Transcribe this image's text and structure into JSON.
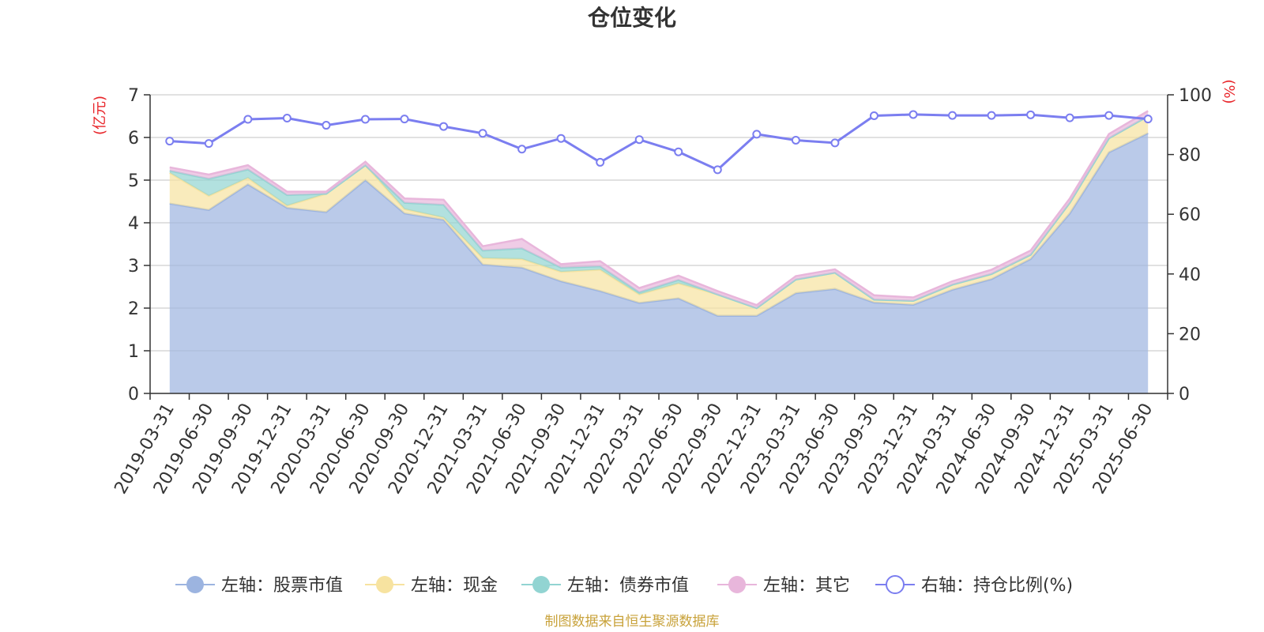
{
  "chart_data": {
    "type": "area",
    "title": "仓位变化",
    "left_unit": "(亿元)",
    "right_unit": "(%)",
    "ylim_left": [
      0,
      7
    ],
    "ylim_right": [
      0,
      100
    ],
    "left_ticks": [
      "0",
      "1",
      "2",
      "3",
      "4",
      "5",
      "6",
      "7"
    ],
    "right_ticks": [
      "0",
      "20",
      "40",
      "60",
      "80",
      "100"
    ],
    "categories": [
      "2019-03-31",
      "2019-06-30",
      "2019-09-30",
      "2019-12-31",
      "2020-03-31",
      "2020-06-30",
      "2020-09-30",
      "2020-12-31",
      "2021-03-31",
      "2021-06-30",
      "2021-09-30",
      "2021-12-31",
      "2022-03-31",
      "2022-06-30",
      "2022-09-30",
      "2022-12-31",
      "2023-03-31",
      "2023-06-30",
      "2023-09-30",
      "2023-12-31",
      "2024-03-31",
      "2024-06-30",
      "2024-09-30",
      "2024-12-31",
      "2025-03-31",
      "2025-06-30"
    ],
    "series": [
      {
        "name": "左轴：股票市值",
        "axis": "left",
        "color": "#9cb4e0",
        "values": [
          4.45,
          4.3,
          4.9,
          4.35,
          4.25,
          5.0,
          4.22,
          4.07,
          3.02,
          2.95,
          2.63,
          2.4,
          2.12,
          2.23,
          1.82,
          1.82,
          2.35,
          2.45,
          2.13,
          2.08,
          2.43,
          2.68,
          3.15,
          4.22,
          5.65,
          6.1
        ]
      },
      {
        "name": "左轴：现金",
        "axis": "left",
        "color": "#f7e3a0",
        "values": [
          0.72,
          0.33,
          0.15,
          0.05,
          0.43,
          0.35,
          0.1,
          0.05,
          0.15,
          0.2,
          0.22,
          0.5,
          0.2,
          0.35,
          0.5,
          0.18,
          0.32,
          0.38,
          0.07,
          0.09,
          0.12,
          0.12,
          0.1,
          0.25,
          0.33,
          0.4
        ]
      },
      {
        "name": "左轴：债券市值",
        "axis": "left",
        "color": "#92d4d2",
        "values": [
          0.05,
          0.4,
          0.2,
          0.25,
          0.0,
          0.0,
          0.15,
          0.3,
          0.18,
          0.25,
          0.1,
          0.08,
          0.05,
          0.08,
          0.0,
          0.0,
          0.0,
          0.0,
          0.0,
          0.0,
          0.0,
          0.0,
          0.0,
          0.0,
          0.0,
          0.0
        ]
      },
      {
        "name": "左轴：其它",
        "axis": "left",
        "color": "#e8b6db",
        "values": [
          0.08,
          0.1,
          0.1,
          0.08,
          0.05,
          0.08,
          0.1,
          0.12,
          0.1,
          0.22,
          0.08,
          0.12,
          0.1,
          0.1,
          0.08,
          0.07,
          0.08,
          0.08,
          0.1,
          0.08,
          0.08,
          0.1,
          0.1,
          0.1,
          0.1,
          0.12
        ]
      },
      {
        "name": "右轴：持仓比例(%)",
        "axis": "right",
        "color": "#7b7ef0",
        "values": [
          84.5,
          83.7,
          91.8,
          92.2,
          89.8,
          91.8,
          91.9,
          89.4,
          87.1,
          81.8,
          85.4,
          77.4,
          85.0,
          80.9,
          74.9,
          86.8,
          84.8,
          83.9,
          93.0,
          93.4,
          93.1,
          93.1,
          93.3,
          92.3,
          93.1,
          91.9
        ]
      }
    ],
    "legend_position": "bottom",
    "grid": true
  },
  "footer": {
    "source": "制图数据来自恒生聚源数据库"
  }
}
